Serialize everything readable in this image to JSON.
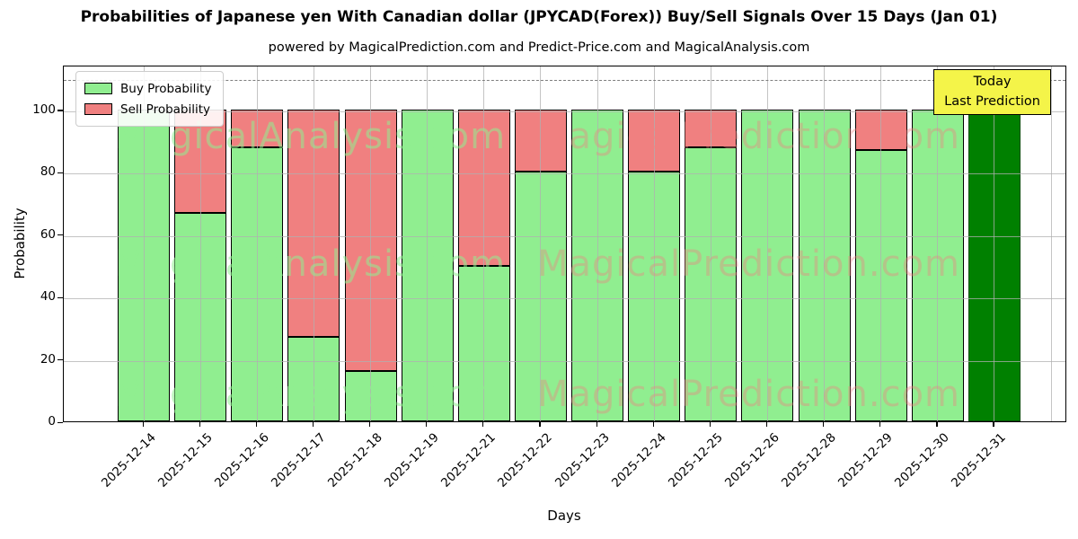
{
  "header": {
    "title": "Probabilities of Japanese yen With Canadian dollar (JPYCAD(Forex)) Buy/Sell Signals Over 15 Days (Jan 01)",
    "subtitle": "powered by MagicalPrediction.com and Predict-Price.com and MagicalAnalysis.com"
  },
  "chart_data": {
    "type": "bar",
    "stacked": true,
    "title": "Probabilities of Japanese yen With Canadian dollar (JPYCAD(Forex)) Buy/Sell Signals Over 15 Days (Jan 01)",
    "subtitle": "powered by MagicalPrediction.com and Predict-Price.com and MagicalAnalysis.com",
    "xlabel": "Days",
    "ylabel": "Probability",
    "categories": [
      "2025-12-14",
      "2025-12-15",
      "2025-12-16",
      "2025-12-17",
      "2025-12-18",
      "2025-12-19",
      "2025-12-21",
      "2025-12-22",
      "2025-12-23",
      "2025-12-24",
      "2025-12-25",
      "2025-12-26",
      "2025-12-28",
      "2025-12-29",
      "2025-12-30",
      "2025-12-31"
    ],
    "series": [
      {
        "name": "Buy Probability",
        "color": "#90ee90",
        "values": [
          100,
          67,
          88,
          27,
          16,
          100,
          50,
          80,
          100,
          80,
          88,
          100,
          100,
          87,
          100,
          100
        ]
      },
      {
        "name": "Sell Probability",
        "color": "#f08080",
        "values": [
          0,
          33,
          12,
          73,
          84,
          0,
          50,
          20,
          0,
          20,
          12,
          0,
          0,
          13,
          0,
          0
        ]
      }
    ],
    "today_bar": {
      "index": 15,
      "color": "#008000"
    },
    "annotation": {
      "line1": "Today",
      "line2": "Last Prediction",
      "bg_color": "#f4f449"
    },
    "yticks": [
      0,
      20,
      40,
      60,
      80,
      100
    ],
    "ylim": [
      0,
      114.4
    ],
    "dashed_line_y": 110,
    "grid": true,
    "legend_position": "upper left",
    "bar_edge_color": "#000000",
    "watermarks": [
      {
        "text": "MagicalAnalysis.com",
        "color": "rgba(144,238,144,0.55)"
      },
      {
        "text": "MagicalPrediction.com",
        "color": "rgba(240,128,128,0.38)"
      }
    ]
  }
}
